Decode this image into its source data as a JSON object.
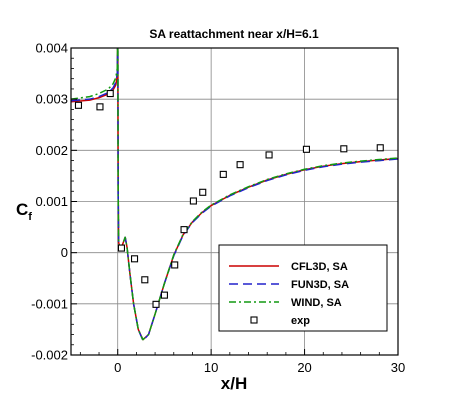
{
  "chart_data": {
    "type": "line",
    "title": "SA reattachment near x/H=6.1",
    "xlabel": "x/H",
    "ylabel_main": "C",
    "ylabel_sub": "f",
    "xlim": [
      -5,
      30
    ],
    "ylim": [
      -0.002,
      0.004
    ],
    "x_ticks": [
      0,
      10,
      20,
      30
    ],
    "x_tick_labels": [
      "0",
      "10",
      "20",
      "30"
    ],
    "y_ticks": [
      -0.002,
      -0.001,
      0,
      0.001,
      0.002,
      0.003,
      0.004
    ],
    "y_tick_labels": [
      "-0.002",
      "-0.001",
      "0",
      "0.001",
      "0.002",
      "0.003",
      "0.004"
    ],
    "grid": true,
    "legend_position": "lower-right",
    "series": [
      {
        "name": "CFL3D, SA",
        "color": "#cc0000",
        "style": "solid",
        "points": [
          [
            -5,
            0.00295
          ],
          [
            -3,
            0.00298
          ],
          [
            -2,
            0.00303
          ],
          [
            -1,
            0.0031
          ],
          [
            -0.5,
            0.00318
          ],
          [
            -0.2,
            0.00328
          ],
          [
            -0.05,
            0.00345
          ],
          [
            0,
            0.0042
          ],
          [
            0.01,
            0.0045
          ],
          [
            0.02,
            0.0035
          ],
          [
            0.05,
            0.0012
          ],
          [
            0.1,
            0.0002
          ],
          [
            0.3,
            5e-05
          ],
          [
            0.6,
            0.0002
          ],
          [
            0.8,
            0.0003
          ],
          [
            1.0,
            0.0001
          ],
          [
            1.3,
            -0.0004
          ],
          [
            1.7,
            -0.001
          ],
          [
            2.2,
            -0.0015
          ],
          [
            2.7,
            -0.0017
          ],
          [
            3.3,
            -0.0016
          ],
          [
            4.0,
            -0.0012
          ],
          [
            5.0,
            -0.0006
          ],
          [
            6.0,
            -5e-05
          ],
          [
            7.0,
            0.00035
          ],
          [
            8.0,
            0.0006
          ],
          [
            9.0,
            0.00078
          ],
          [
            10.0,
            0.00092
          ],
          [
            12.0,
            0.00112
          ],
          [
            14.0,
            0.00128
          ],
          [
            16.0,
            0.00142
          ],
          [
            18.0,
            0.00153
          ],
          [
            20.0,
            0.00162
          ],
          [
            22.0,
            0.00169
          ],
          [
            24.0,
            0.00174
          ],
          [
            26.0,
            0.00178
          ],
          [
            28.0,
            0.00181
          ],
          [
            30.0,
            0.00184
          ]
        ]
      },
      {
        "name": "FUN3D, SA",
        "color": "#2222cc",
        "style": "dashed",
        "points": [
          [
            -5,
            0.00297
          ],
          [
            -3,
            0.003
          ],
          [
            -2,
            0.00305
          ],
          [
            -1,
            0.00313
          ],
          [
            -0.5,
            0.00322
          ],
          [
            -0.2,
            0.00333
          ],
          [
            -0.05,
            0.0035
          ],
          [
            0,
            0.0042
          ],
          [
            0.01,
            0.0045
          ],
          [
            0.02,
            0.0035
          ],
          [
            0.05,
            0.0012
          ],
          [
            0.1,
            0.0002
          ],
          [
            0.3,
            5e-05
          ],
          [
            0.6,
            0.0002
          ],
          [
            0.8,
            0.0003
          ],
          [
            1.0,
            0.0001
          ],
          [
            1.3,
            -0.0004
          ],
          [
            1.7,
            -0.001
          ],
          [
            2.2,
            -0.0015
          ],
          [
            2.7,
            -0.00172
          ],
          [
            3.3,
            -0.0016
          ],
          [
            4.0,
            -0.0012
          ],
          [
            5.0,
            -0.0006
          ],
          [
            6.0,
            -6e-05
          ],
          [
            7.0,
            0.00034
          ],
          [
            8.0,
            0.00059
          ],
          [
            9.0,
            0.00077
          ],
          [
            10.0,
            0.00091
          ],
          [
            12.0,
            0.00111
          ],
          [
            14.0,
            0.00127
          ],
          [
            16.0,
            0.00141
          ],
          [
            18.0,
            0.00152
          ],
          [
            20.0,
            0.00161
          ],
          [
            22.0,
            0.00168
          ],
          [
            24.0,
            0.00173
          ],
          [
            26.0,
            0.00177
          ],
          [
            28.0,
            0.0018
          ],
          [
            30.0,
            0.00183
          ]
        ]
      },
      {
        "name": "WIND, SA",
        "color": "#119911",
        "style": "dashdot",
        "points": [
          [
            -5,
            0.003
          ],
          [
            -3,
            0.00305
          ],
          [
            -2,
            0.00311
          ],
          [
            -1,
            0.0032
          ],
          [
            -0.5,
            0.0033
          ],
          [
            -0.2,
            0.00342
          ],
          [
            -0.05,
            0.0036
          ],
          [
            0,
            0.0042
          ],
          [
            0.01,
            0.0045
          ],
          [
            0.02,
            0.0035
          ],
          [
            0.05,
            0.0012
          ],
          [
            0.1,
            0.0002
          ],
          [
            0.3,
            5e-05
          ],
          [
            0.6,
            0.0002
          ],
          [
            0.8,
            0.0003
          ],
          [
            1.0,
            0.0001
          ],
          [
            1.3,
            -0.0004
          ],
          [
            1.7,
            -0.001
          ],
          [
            2.2,
            -0.0015
          ],
          [
            2.7,
            -0.0017
          ],
          [
            3.3,
            -0.0016
          ],
          [
            4.0,
            -0.0012
          ],
          [
            5.0,
            -0.0006
          ],
          [
            6.0,
            -4e-05
          ],
          [
            7.0,
            0.00036
          ],
          [
            8.0,
            0.00061
          ],
          [
            9.0,
            0.00079
          ],
          [
            10.0,
            0.00093
          ],
          [
            12.0,
            0.00113
          ],
          [
            14.0,
            0.00129
          ],
          [
            16.0,
            0.00143
          ],
          [
            18.0,
            0.00154
          ],
          [
            20.0,
            0.00163
          ],
          [
            22.0,
            0.0017
          ],
          [
            24.0,
            0.00175
          ],
          [
            26.0,
            0.00179
          ],
          [
            28.0,
            0.00182
          ],
          [
            30.0,
            0.00185
          ]
        ]
      },
      {
        "name": "exp",
        "color": "#000000",
        "style": "marker-square-open",
        "points": [
          [
            -4.2,
            0.00288
          ],
          [
            -1.9,
            0.00285
          ],
          [
            -0.8,
            0.00311
          ],
          [
            0.4,
            9e-05
          ],
          [
            1.8,
            -0.00012
          ],
          [
            2.9,
            -0.00053
          ],
          [
            4.1,
            -0.00101
          ],
          [
            5.0,
            -0.00083
          ],
          [
            6.1,
            -0.00024
          ],
          [
            7.1,
            0.00045
          ],
          [
            8.1,
            0.00101
          ],
          [
            9.1,
            0.00118
          ],
          [
            11.3,
            0.00153
          ],
          [
            13.1,
            0.00172
          ],
          [
            16.2,
            0.00191
          ],
          [
            20.2,
            0.00202
          ],
          [
            24.2,
            0.00203
          ],
          [
            28.1,
            0.00205
          ]
        ]
      }
    ]
  }
}
